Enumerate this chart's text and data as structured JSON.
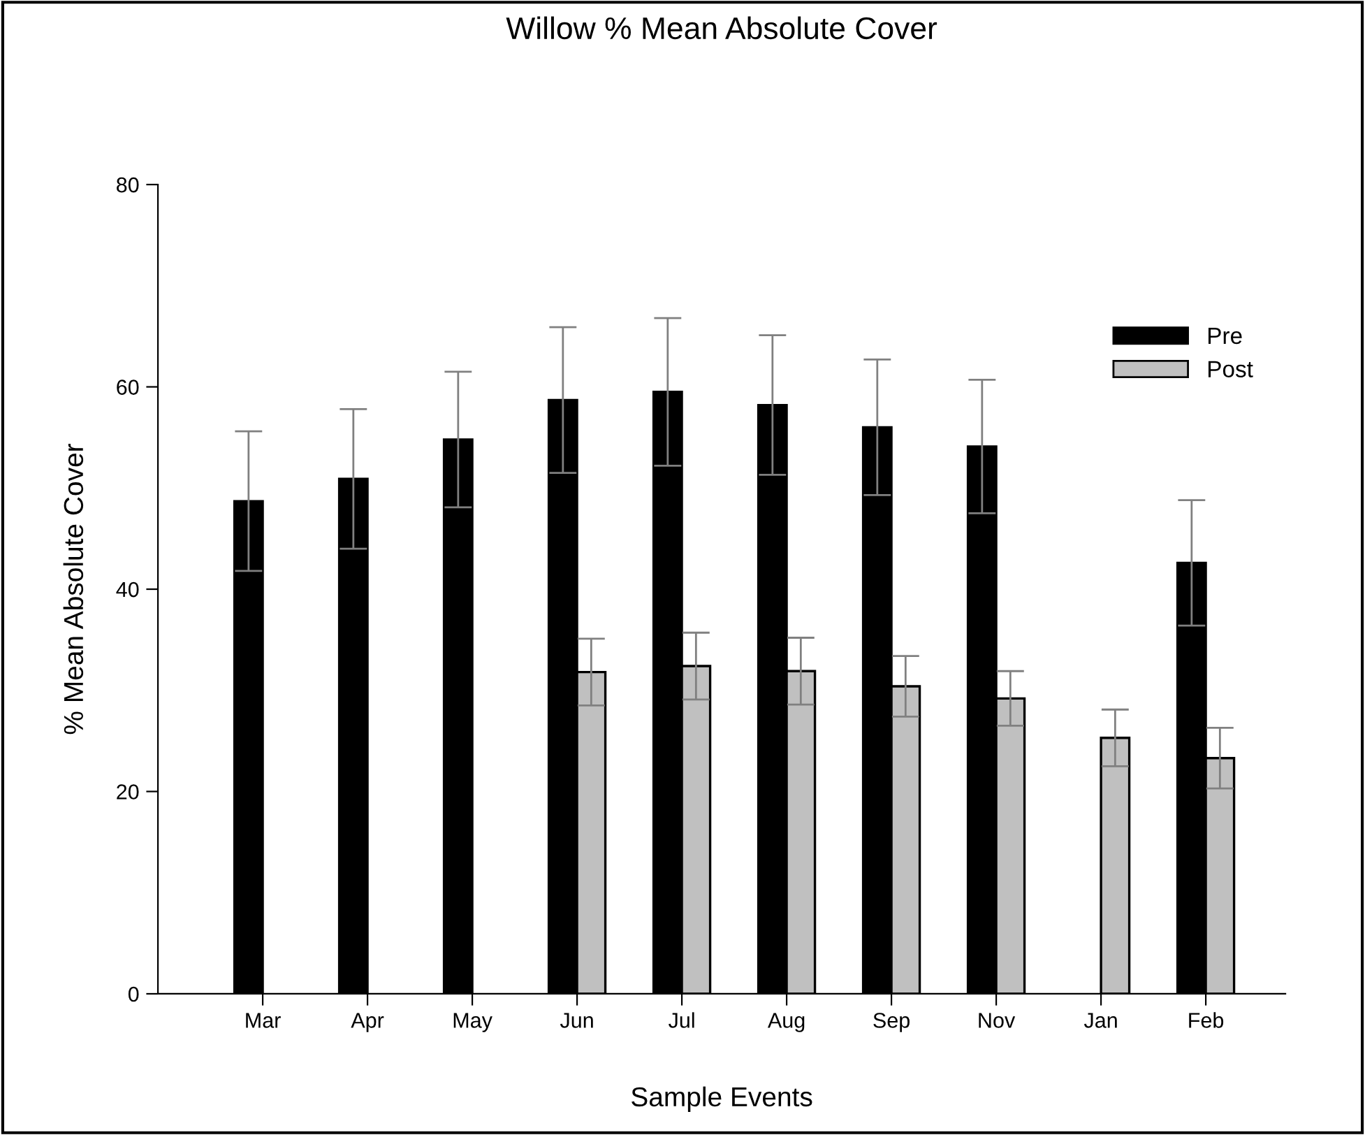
{
  "chart_data": {
    "type": "bar",
    "title": "Willow % Mean Absolute Cover",
    "xlabel": "Sample Events",
    "ylabel": "% Mean Absolute Cover",
    "categories": [
      "Mar",
      "Apr",
      "May",
      "Jun",
      "Jul",
      "Aug",
      "Sep",
      "Nov",
      "Jan",
      "Feb"
    ],
    "series": [
      {
        "name": "Pre",
        "color": "#000000",
        "values": [
          48.7,
          50.9,
          54.8,
          58.7,
          59.5,
          58.2,
          56.0,
          54.1,
          null,
          42.6
        ],
        "errors": [
          6.9,
          6.9,
          6.7,
          7.2,
          7.3,
          6.9,
          6.7,
          6.6,
          null,
          6.2
        ]
      },
      {
        "name": "Post",
        "color": "#c0c0c0",
        "values": [
          null,
          null,
          null,
          31.8,
          32.4,
          31.9,
          30.4,
          29.2,
          25.3,
          23.3
        ],
        "errors": [
          null,
          null,
          null,
          3.3,
          3.3,
          3.3,
          3.0,
          2.7,
          2.8,
          3.0
        ]
      }
    ],
    "ylim": [
      0,
      80
    ],
    "yticks": [
      0,
      20,
      40,
      60,
      80
    ],
    "grid": false,
    "legend": "top right"
  }
}
